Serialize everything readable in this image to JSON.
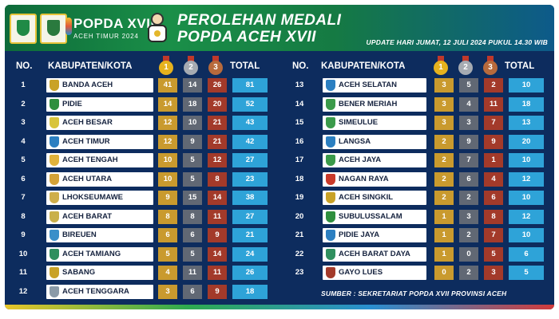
{
  "header": {
    "logo_left_1": "shield-logo",
    "logo_left_2": "aceh-timur-logo",
    "popda_big": "POPDA XVII",
    "popda_small": "ACEH TIMUR 2024",
    "title_line1": "PEROLEHAN MEDALI",
    "title_line2": "POPDA ACEH XVII",
    "update": "UPDATE HARI JUMAT, 12 JULI 2024 PUKUL 14.30 WIB"
  },
  "columns": {
    "no": "NO.",
    "kab": "KABUPATEN/KOTA",
    "total": "TOTAL",
    "gold_icon": "gold-medal-icon",
    "silver_icon": "silver-medal-icon",
    "bronze_icon": "bronze-medal-icon"
  },
  "colors": {
    "background": "#0d2c5e",
    "gold": "#c99a2e",
    "silver": "#616874",
    "bronze": "#a33a2a",
    "total": "#2ea3d8"
  },
  "left_rows": [
    {
      "no": "1",
      "name": "BANDA ACEH",
      "gold": "41",
      "silver": "14",
      "bronze": "26",
      "total": "81",
      "emblem": "#c9a227"
    },
    {
      "no": "2",
      "name": "PIDIE",
      "gold": "14",
      "silver": "18",
      "bronze": "20",
      "total": "52",
      "emblem": "#2f8f3e"
    },
    {
      "no": "3",
      "name": "ACEH BESAR",
      "gold": "12",
      "silver": "10",
      "bronze": "21",
      "total": "43",
      "emblem": "#d8c43a"
    },
    {
      "no": "4",
      "name": "ACEH TIMUR",
      "gold": "12",
      "silver": "9",
      "bronze": "21",
      "total": "42",
      "emblem": "#2b7fc1"
    },
    {
      "no": "5",
      "name": "ACEH TENGAH",
      "gold": "10",
      "silver": "5",
      "bronze": "12",
      "total": "27",
      "emblem": "#e0b23a"
    },
    {
      "no": "6",
      "name": "ACEH UTARA",
      "gold": "10",
      "silver": "5",
      "bronze": "8",
      "total": "23",
      "emblem": "#d3a237"
    },
    {
      "no": "7",
      "name": "LHOKSEUMAWE",
      "gold": "9",
      "silver": "15",
      "bronze": "14",
      "total": "38",
      "emblem": "#cfae4a"
    },
    {
      "no": "8",
      "name": "ACEH BARAT",
      "gold": "8",
      "silver": "8",
      "bronze": "11",
      "total": "27",
      "emblem": "#c9b04a"
    },
    {
      "no": "9",
      "name": "BIREUEN",
      "gold": "6",
      "silver": "6",
      "bronze": "9",
      "total": "21",
      "emblem": "#3a8fc9"
    },
    {
      "no": "10",
      "name": "ACEH TAMIANG",
      "gold": "5",
      "silver": "5",
      "bronze": "14",
      "total": "24",
      "emblem": "#2f8f5e"
    },
    {
      "no": "11",
      "name": "SABANG",
      "gold": "4",
      "silver": "11",
      "bronze": "11",
      "total": "26",
      "emblem": "#c9a227"
    },
    {
      "no": "12",
      "name": "ACEH TENGGARA",
      "gold": "3",
      "silver": "6",
      "bronze": "9",
      "total": "18",
      "emblem": "#8a9aa8"
    }
  ],
  "right_rows": [
    {
      "no": "13",
      "name": "ACEH SELATAN",
      "gold": "3",
      "silver": "5",
      "bronze": "2",
      "total": "10",
      "emblem": "#2b7fc1"
    },
    {
      "no": "14",
      "name": "BENER MERIAH",
      "gold": "3",
      "silver": "4",
      "bronze": "11",
      "total": "18",
      "emblem": "#3a9a4a"
    },
    {
      "no": "15",
      "name": "SIMEULUE",
      "gold": "3",
      "silver": "3",
      "bronze": "7",
      "total": "13",
      "emblem": "#3a9a4a"
    },
    {
      "no": "16",
      "name": "LANGSA",
      "gold": "2",
      "silver": "9",
      "bronze": "9",
      "total": "20",
      "emblem": "#2b7fc1"
    },
    {
      "no": "17",
      "name": "ACEH JAYA",
      "gold": "2",
      "silver": "7",
      "bronze": "1",
      "total": "10",
      "emblem": "#3a9a4a"
    },
    {
      "no": "18",
      "name": "NAGAN RAYA",
      "gold": "2",
      "silver": "6",
      "bronze": "4",
      "total": "12",
      "emblem": "#c93a2a"
    },
    {
      "no": "19",
      "name": "ACEH SINGKIL",
      "gold": "2",
      "silver": "2",
      "bronze": "6",
      "total": "10",
      "emblem": "#c9a227"
    },
    {
      "no": "20",
      "name": "SUBULUSSALAM",
      "gold": "1",
      "silver": "3",
      "bronze": "8",
      "total": "12",
      "emblem": "#2f8f3e"
    },
    {
      "no": "21",
      "name": "PIDIE JAYA",
      "gold": "1",
      "silver": "2",
      "bronze": "7",
      "total": "10",
      "emblem": "#2b7fc1"
    },
    {
      "no": "22",
      "name": "ACEH BARAT DAYA",
      "gold": "1",
      "silver": "0",
      "bronze": "5",
      "total": "6",
      "emblem": "#2f8f5e"
    },
    {
      "no": "23",
      "name": "GAYO LUES",
      "gold": "0",
      "silver": "2",
      "bronze": "3",
      "total": "5",
      "emblem": "#a33a2a"
    }
  ],
  "footer": {
    "source": "SUMBER : SEKRETARIAT POPDA XVII PROVINSI ACEH"
  }
}
